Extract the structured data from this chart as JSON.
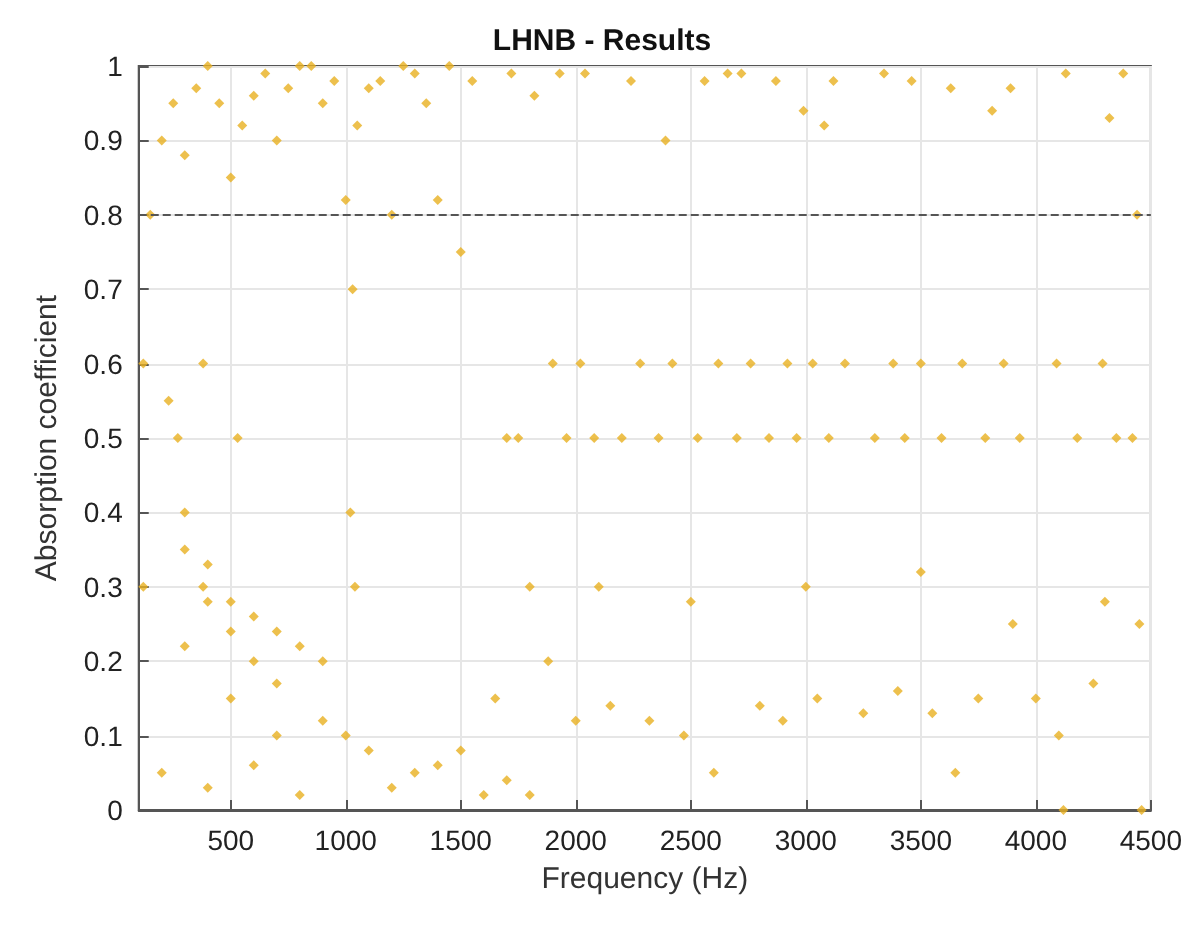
{
  "chart_data": {
    "type": "scatter",
    "title": "LHNB - Results",
    "xlabel": "Frequency (Hz)",
    "ylabel": "Absorption coefficient",
    "x": [
      150,
      200,
      250,
      300,
      350,
      400,
      450,
      500,
      550,
      600,
      650,
      700,
      750,
      800,
      850,
      900,
      950,
      1000,
      1050,
      1100,
      1150,
      1200,
      1250,
      1300,
      1350,
      1400,
      1450,
      1500,
      1550,
      120,
      120,
      230,
      270,
      380,
      380,
      530,
      1020,
      1030,
      1040,
      300,
      400,
      500,
      600,
      700,
      800,
      900,
      300,
      400,
      500,
      600,
      700,
      300,
      500,
      700,
      900,
      1100,
      1300,
      1500,
      1700,
      1800,
      200,
      400,
      600,
      800,
      1000,
      1200,
      1400,
      1600,
      1720,
      1820,
      1930,
      2040,
      2240,
      2390,
      2560,
      2660,
      2720,
      2870,
      2990,
      3080,
      3120,
      3340,
      3460,
      3630,
      3810,
      3890,
      4130,
      4320,
      4380,
      1650,
      1880,
      2000,
      2150,
      2320,
      2470,
      2600,
      2800,
      2900,
      3050,
      3250,
      3400,
      3550,
      3650,
      3750,
      4000,
      4100,
      4120,
      4250,
      4450,
      4460,
      1700,
      1750,
      1900,
      1960,
      2020,
      2080,
      2200,
      2280,
      2360,
      2420,
      2530,
      2620,
      2700,
      2760,
      2840,
      2920,
      2960,
      3030,
      3100,
      3170,
      3300,
      3380,
      3430,
      3500,
      3590,
      3680,
      3780,
      3860,
      3930,
      4090,
      4180,
      4290,
      4350,
      4420,
      4440,
      1800,
      2100,
      2500,
      3000,
      3500,
      3900,
      4300
    ],
    "values": [
      0.8,
      0.9,
      0.95,
      0.88,
      0.97,
      1.0,
      0.95,
      0.85,
      0.92,
      0.96,
      0.99,
      0.9,
      0.97,
      1.0,
      1.0,
      0.95,
      0.98,
      0.82,
      0.92,
      0.97,
      0.98,
      0.8,
      1.0,
      0.99,
      0.95,
      0.82,
      1.0,
      0.75,
      0.98,
      0.6,
      0.3,
      0.55,
      0.5,
      0.6,
      0.3,
      0.5,
      0.4,
      0.7,
      0.3,
      0.4,
      0.33,
      0.28,
      0.26,
      0.24,
      0.22,
      0.2,
      0.35,
      0.28,
      0.24,
      0.2,
      0.17,
      0.22,
      0.15,
      0.1,
      0.12,
      0.08,
      0.05,
      0.08,
      0.04,
      0.02,
      0.05,
      0.03,
      0.06,
      0.02,
      0.1,
      0.03,
      0.06,
      0.02,
      0.99,
      0.96,
      0.99,
      0.99,
      0.98,
      0.9,
      0.98,
      0.99,
      0.99,
      0.98,
      0.94,
      0.92,
      0.98,
      0.99,
      0.98,
      0.97,
      0.94,
      0.97,
      0.99,
      0.93,
      0.99,
      0.15,
      0.2,
      0.12,
      0.14,
      0.12,
      0.1,
      0.05,
      0.14,
      0.12,
      0.15,
      0.13,
      0.16,
      0.13,
      0.05,
      0.15,
      0.15,
      0.1,
      0.0,
      0.17,
      0.25,
      0.0,
      0.5,
      0.5,
      0.6,
      0.5,
      0.6,
      0.5,
      0.5,
      0.6,
      0.5,
      0.6,
      0.5,
      0.6,
      0.5,
      0.6,
      0.5,
      0.6,
      0.5,
      0.6,
      0.5,
      0.6,
      0.5,
      0.6,
      0.5,
      0.6,
      0.5,
      0.6,
      0.5,
      0.6,
      0.5,
      0.6,
      0.5,
      0.6,
      0.5,
      0.5,
      0.8,
      0.3,
      0.3,
      0.28,
      0.3,
      0.32,
      0.25,
      0.28
    ],
    "color": "#e8b020",
    "marker": "diamond",
    "xlim": [
      100,
      4500
    ],
    "xticks": [
      500,
      1000,
      1500,
      2000,
      2500,
      3000,
      3500,
      4000,
      4500
    ],
    "ylim": [
      0,
      1
    ],
    "yticks": [
      0,
      0.1,
      0.2,
      0.3,
      0.4,
      0.5,
      0.6,
      0.7,
      0.8,
      0.9,
      1
    ],
    "grid": true,
    "ref_lines": [
      {
        "axis": "y",
        "value": 0.8,
        "color": "#555555",
        "line_style": "dashed"
      }
    ]
  }
}
